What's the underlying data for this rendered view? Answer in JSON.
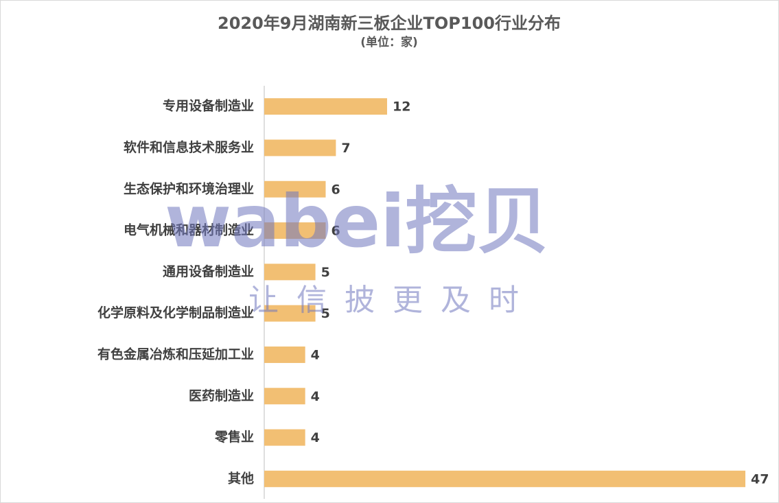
{
  "chart_data": {
    "type": "hbar",
    "title": "2020年9月湖南新三板企业TOP100行业分布",
    "subtitle": "(单位：家)",
    "categories": [
      "专用设备制造业",
      "软件和信息技术服务业",
      "生态保护和环境治理业",
      "电气机械和器材制造业",
      "通用设备制造业",
      "化学原料及化学制品制造业",
      "有色金属冶炼和压延加工业",
      "医药制造业",
      "零售业",
      "其他"
    ],
    "values": [
      12,
      7,
      6,
      6,
      5,
      5,
      4,
      4,
      4,
      47
    ],
    "color": "#f2bf73",
    "xlim": [
      0,
      47
    ],
    "watermark": {
      "brand": "wabei挖贝",
      "slogan": "让信披更及时"
    }
  }
}
